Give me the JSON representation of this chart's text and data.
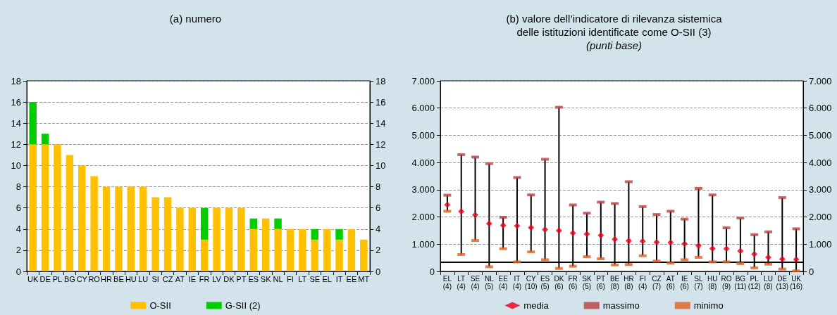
{
  "chart_data": [
    {
      "type": "bar",
      "title": "(a) numero",
      "stacked": true,
      "categories": [
        "UK",
        "DE",
        "PL",
        "BG",
        "CY",
        "RO",
        "HR",
        "BE",
        "HU",
        "LU",
        "SI",
        "CZ",
        "AT",
        "IE",
        "FR",
        "LV",
        "DK",
        "PT",
        "ES",
        "SK",
        "NL",
        "FI",
        "LT",
        "SE",
        "EL",
        "IT",
        "EE",
        "MT"
      ],
      "series": [
        {
          "name": "O-SII",
          "color": "#ffc000",
          "values": [
            12,
            12,
            12,
            11,
            10,
            9,
            8,
            8,
            8,
            8,
            7,
            7,
            6,
            6,
            3,
            6,
            6,
            6,
            4,
            5,
            4,
            4,
            4,
            3,
            4,
            3,
            4,
            3
          ]
        },
        {
          "name": "G-SII (2)",
          "color": "#00cc00",
          "values": [
            4,
            1,
            null,
            null,
            null,
            null,
            null,
            null,
            null,
            null,
            null,
            null,
            null,
            null,
            3,
            null,
            null,
            null,
            1,
            null,
            1,
            null,
            null,
            1,
            null,
            1,
            null,
            null
          ]
        }
      ],
      "ylim": [
        0,
        18
      ],
      "yticks": [
        0,
        2,
        4,
        6,
        8,
        10,
        12,
        14,
        16,
        18
      ],
      "y2lim": [
        0,
        18
      ],
      "y2ticks": [
        0,
        2,
        4,
        6,
        8,
        10,
        12,
        14,
        16,
        18
      ],
      "grid": "y",
      "legend": "bottom"
    },
    {
      "type": "scatter",
      "title": "(b) valore dell’indicatore di rilevanza sistemica\ndelle istituzioni identificate come O-SII (3)",
      "subtitle": "(punti base)",
      "categories": [
        "EL\n(4)",
        "LT\n(4)",
        "SE\n(4)",
        "NL\n(5)",
        "EE\n(4)",
        "IT\n(4)",
        "CY\n(10)",
        "ES\n(5)",
        "DK\n(6)",
        "FR\n(6)",
        "SK\n(5)",
        "PT\n(6)",
        "BE\n(8)",
        "HR\n(8)",
        "FI\n(4)",
        "CZ\n(7)",
        "AT\n(6)",
        "IE\n(6)",
        "SL\n(7)",
        "HU\n(8)",
        "RO\n(9)",
        "BG\n(11)",
        "PL\n(12)",
        "LU\n(8)",
        "DE\n(13)",
        "UK\n(16)"
      ],
      "series": [
        {
          "name": "media",
          "color": "#e8001c",
          "marker": "diamond",
          "values": [
            2450,
            2200,
            2070,
            1755,
            1695,
            1675,
            1610,
            1540,
            1500,
            1410,
            1375,
            1325,
            1180,
            1125,
            1110,
            1075,
            1060,
            1015,
            945,
            840,
            835,
            750,
            630,
            515,
            455,
            440
          ]
        },
        {
          "name": "massimo",
          "color": "#b84040",
          "values": [
            2800,
            4290,
            4200,
            3960,
            1990,
            3450,
            2810,
            4120,
            6030,
            2440,
            2140,
            2545,
            2495,
            3295,
            2380,
            2090,
            2210,
            1920,
            3050,
            2810,
            1600,
            1960,
            1350,
            1455,
            2710,
            1565
          ]
        },
        {
          "name": "minimo",
          "color": "#e06020",
          "values": [
            2210,
            620,
            1135,
            170,
            835,
            350,
            715,
            430,
            110,
            190,
            540,
            465,
            240,
            250,
            575,
            380,
            300,
            430,
            515,
            350,
            350,
            285,
            130,
            265,
            85,
            20
          ]
        }
      ],
      "ylim": [
        0,
        7000
      ],
      "yticks": [
        0,
        {
          "value": 1000,
          "label": "1.000"
        },
        {
          "value": 2000,
          "label": "2.000"
        },
        {
          "value": 3000,
          "label": "3.000"
        },
        {
          "value": 4000,
          "label": "4.000"
        },
        {
          "value": 5000,
          "label": "5.000"
        },
        {
          "value": 6000,
          "label": "6.000"
        },
        {
          "value": 7000,
          "label": "7.000"
        }
      ],
      "y2lim": [
        0,
        7000
      ],
      "y2ticks": [
        0,
        {
          "value": 1000,
          "label": "1.000"
        },
        {
          "value": 2000,
          "label": "2.000"
        },
        {
          "value": 3000,
          "label": "3.000"
        },
        {
          "value": 4000,
          "label": "4.000"
        },
        {
          "value": 5000,
          "label": "5.000"
        },
        {
          "value": 6000,
          "label": "6.000"
        },
        {
          "value": 7000,
          "label": "7.000"
        }
      ],
      "ref_lines": [
        {
          "axis": "y",
          "value": 350,
          "color": "#000000"
        }
      ],
      "grid": "y",
      "legend": "bottom"
    }
  ]
}
